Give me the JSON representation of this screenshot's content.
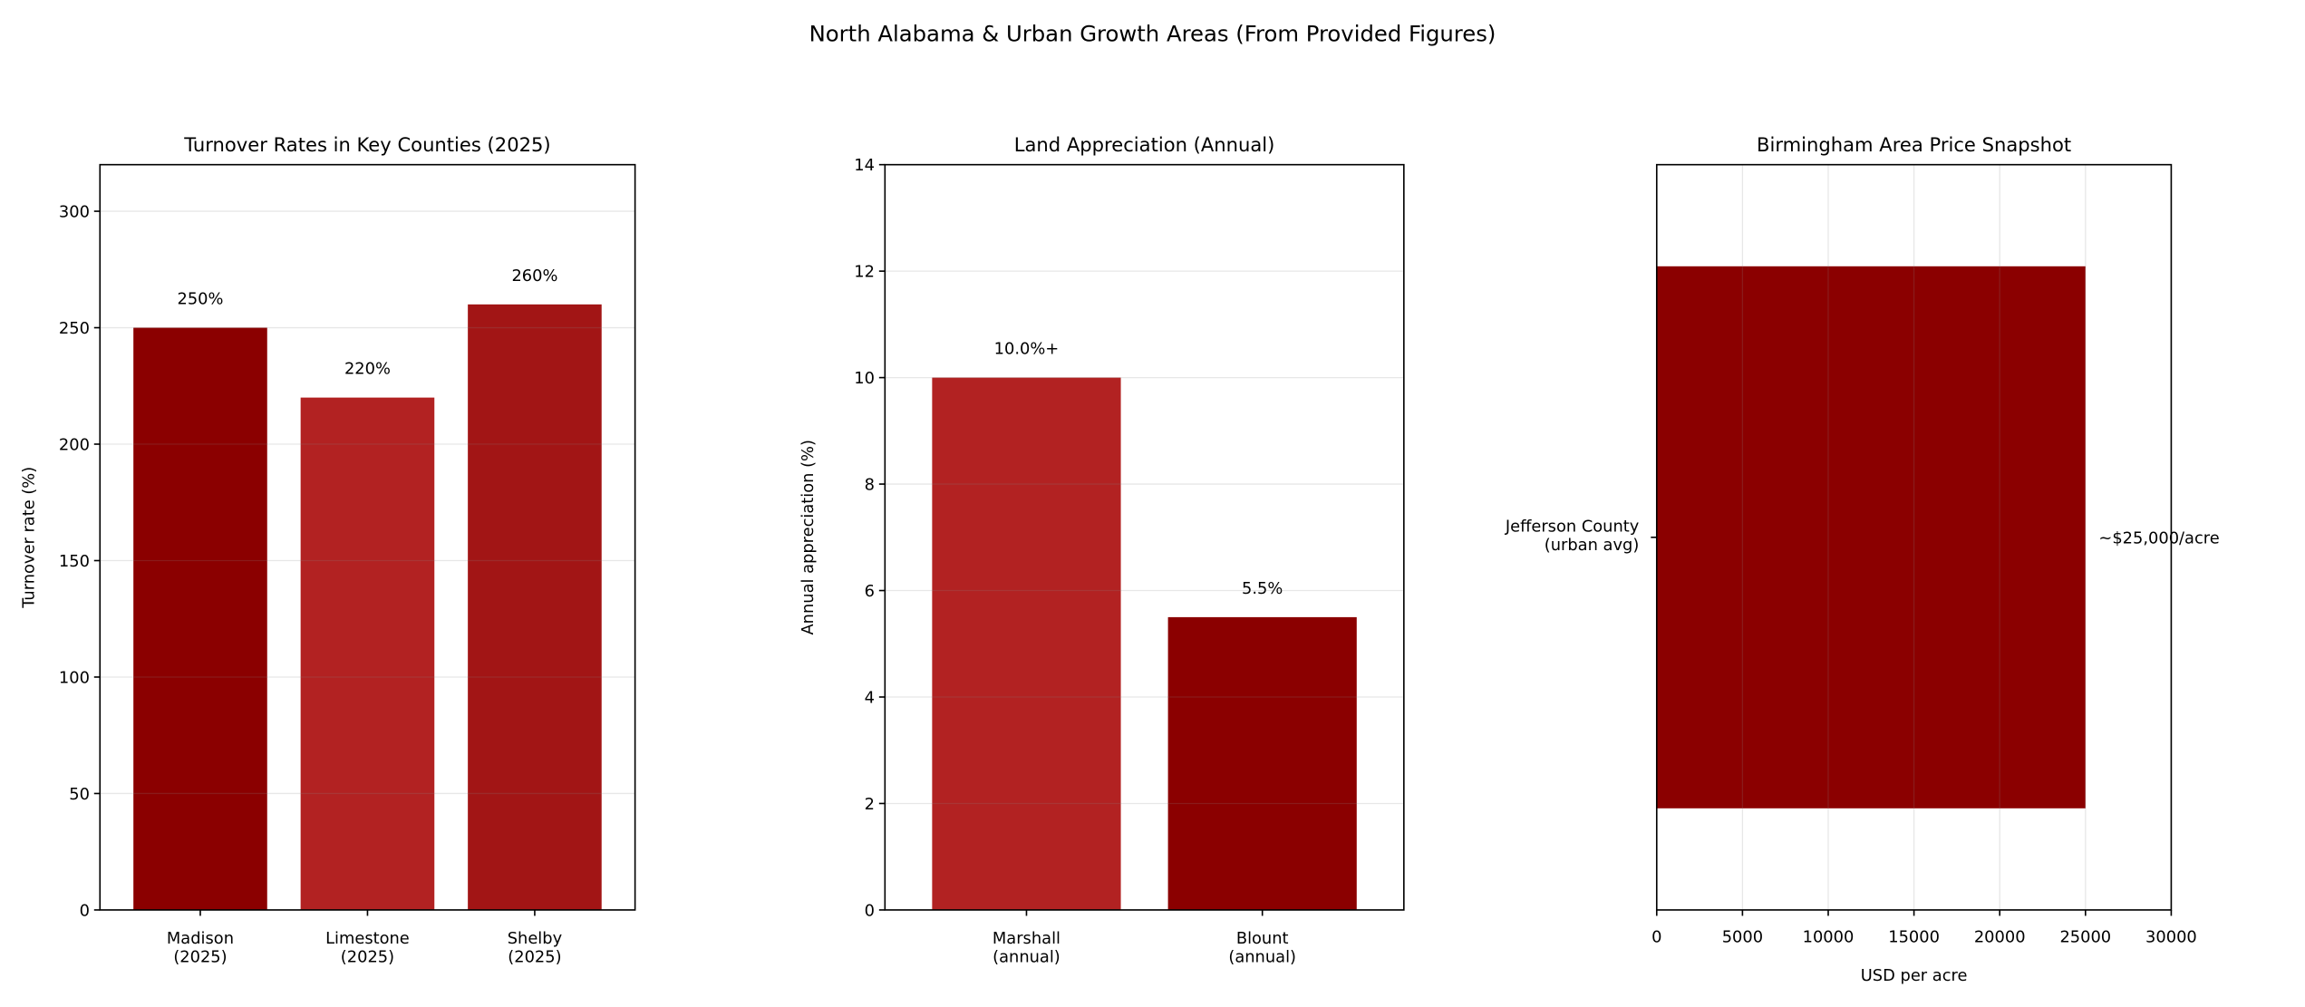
{
  "suptitle": "North Alabama & Urban Growth Areas (From Provided Figures)",
  "chart_data": [
    {
      "type": "bar",
      "title": "Turnover Rates in Key Counties (2025)",
      "xlabel": "",
      "ylabel": "Turnover rate (%)",
      "categories": [
        "Madison\n(2025)",
        "Limestone\n(2025)",
        "Shelby\n(2025)"
      ],
      "values": [
        250,
        220,
        260
      ],
      "data_labels": [
        "250%",
        "220%",
        "260%"
      ],
      "colors": [
        "#8b0000",
        "#b22222",
        "#a21515"
      ],
      "ylim": [
        0,
        320
      ],
      "yticks": [
        0,
        50,
        100,
        150,
        200,
        250,
        300
      ],
      "grid": "y"
    },
    {
      "type": "bar",
      "title": "Land Appreciation (Annual)",
      "xlabel": "",
      "ylabel": "Annual appreciation (%)",
      "categories": [
        "Marshall\n(annual)",
        "Blount\n(annual)"
      ],
      "values": [
        10.0,
        5.5
      ],
      "data_labels": [
        "10.0%+",
        "5.5%"
      ],
      "colors": [
        "#b22222",
        "#8b0000"
      ],
      "ylim": [
        0,
        14
      ],
      "yticks": [
        0,
        2,
        4,
        6,
        8,
        10,
        12,
        14
      ],
      "grid": "y"
    },
    {
      "type": "barh",
      "title": "Birmingham Area Price Snapshot",
      "xlabel": "USD per acre",
      "ylabel": "",
      "categories": [
        "Jefferson County\n(urban avg)"
      ],
      "values": [
        25000
      ],
      "data_labels": [
        "~$25,000/acre"
      ],
      "colors": [
        "#8b0000"
      ],
      "xlim": [
        0,
        30000
      ],
      "xticks": [
        0,
        5000,
        10000,
        15000,
        20000,
        25000,
        30000
      ],
      "grid": "x"
    }
  ]
}
